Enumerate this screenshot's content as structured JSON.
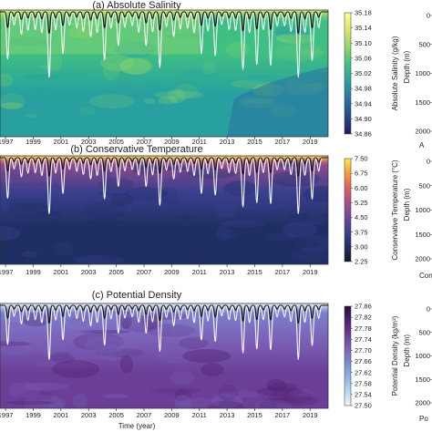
{
  "figure": {
    "xlabel": "Time (year)",
    "year_ticks": [
      "1997",
      "1999",
      "2001",
      "2003",
      "2005",
      "2007",
      "2009",
      "2011",
      "2013",
      "2015",
      "2017",
      "2019"
    ],
    "x_range": [
      1996.6,
      2020.3
    ],
    "depth_ticks": [
      "0",
      "500",
      "1000",
      "1500",
      "2000"
    ],
    "side_axis_label": "Depth (m)",
    "edge_fragments": [
      "A",
      "Conse",
      "Po"
    ]
  },
  "chart_data": [
    {
      "type": "heatmap",
      "title": "(a) Absolute Salinity",
      "xlabel": "",
      "ylabel": "",
      "colorbar": {
        "label": "Absolute Salinity (g/kg)",
        "ticks": [
          "35.18",
          "35.14",
          "35.10",
          "35.06",
          "35.02",
          "34.98",
          "34.94",
          "34.90",
          "34.86"
        ],
        "range": [
          34.86,
          35.18
        ],
        "colors": [
          "#1e1a64",
          "#26478f",
          "#2a71a3",
          "#28a0a0",
          "#3fbf83",
          "#8fd66a",
          "#d7e86a",
          "#ffff8a"
        ]
      }
    },
    {
      "type": "heatmap",
      "title": "(b) Conservative Temperature",
      "xlabel": "",
      "ylabel": "",
      "colorbar": {
        "label": "Conservative Temperature (°C)",
        "ticks": [
          "7.50",
          "6.75",
          "6.00",
          "5.25",
          "4.50",
          "3.75",
          "3.00",
          "2.25"
        ],
        "range": [
          2.25,
          7.5
        ],
        "colors": [
          "#0d1a2e",
          "#1e2f63",
          "#3b3f8f",
          "#6a4a9a",
          "#a84f8c",
          "#e05d5d",
          "#f59a3c",
          "#fde84a"
        ]
      }
    },
    {
      "type": "heatmap",
      "title": "(c) Potential Density",
      "xlabel": "Time (year)",
      "ylabel": "",
      "colorbar": {
        "label": "Potential Density (kg/m³)",
        "ticks": [
          "27.86",
          "27.82",
          "27.78",
          "27.74",
          "27.70",
          "27.66",
          "27.62",
          "27.58",
          "27.54",
          "27.50"
        ],
        "range": [
          27.5,
          27.86
        ],
        "colors": [
          "#eef6f8",
          "#b8d8ee",
          "#8fb1e2",
          "#7d8bd4",
          "#7b62b9",
          "#6b3f98",
          "#4f1f6f",
          "#2c0a3d"
        ]
      }
    }
  ]
}
